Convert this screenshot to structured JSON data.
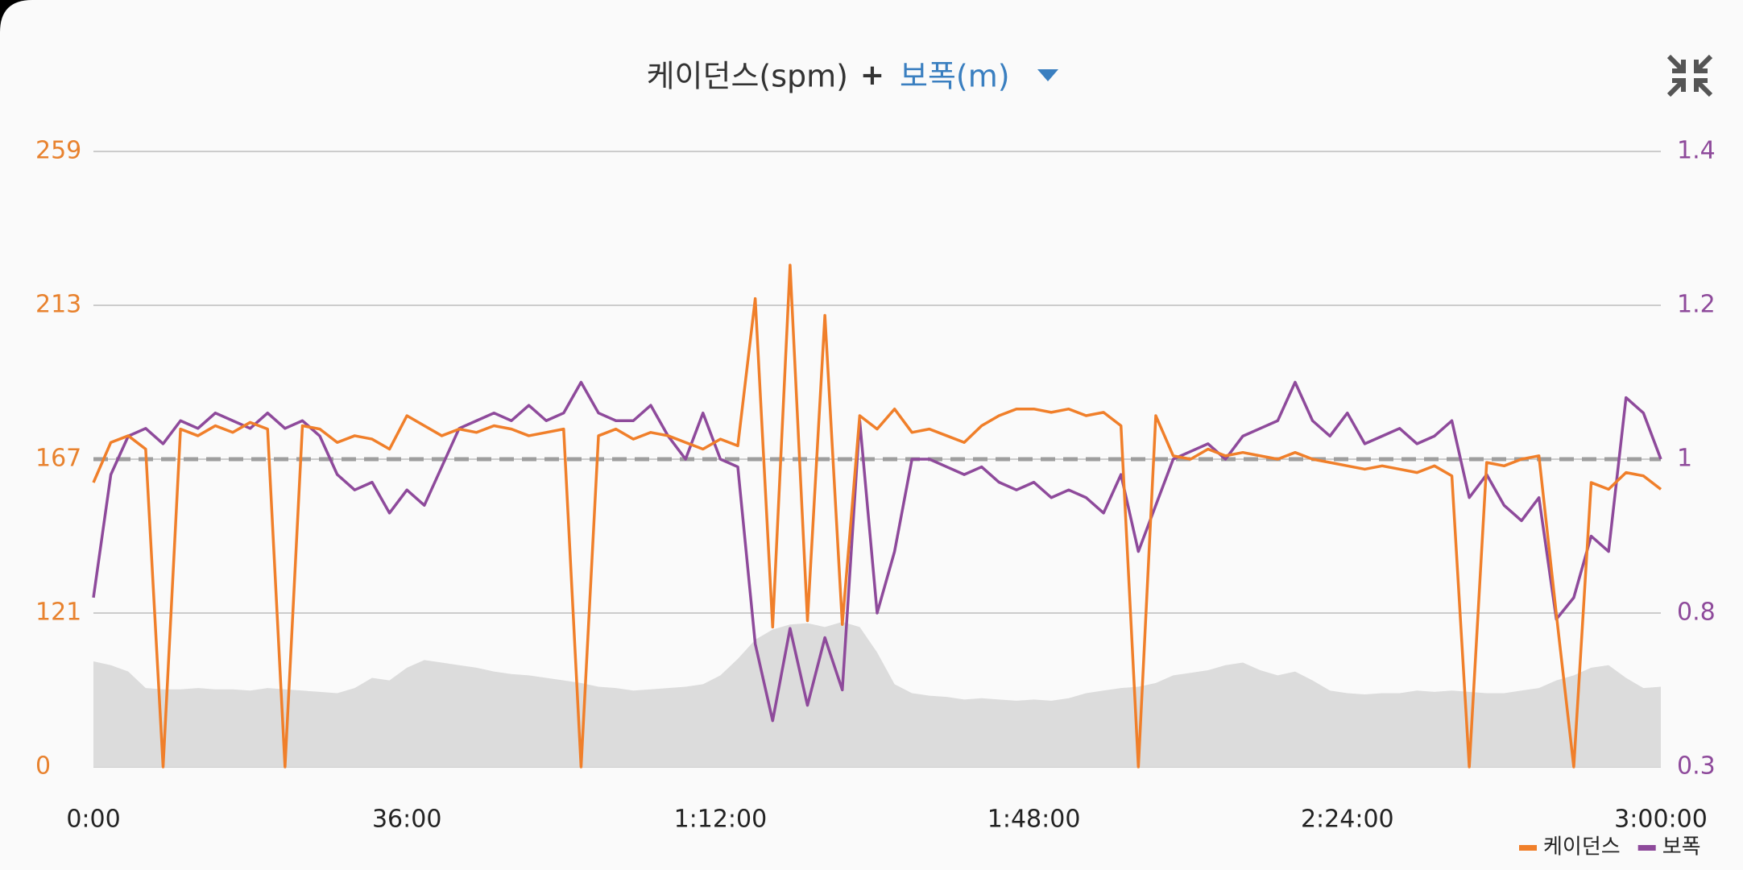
{
  "chart_data": {
    "type": "line",
    "title": {
      "primary": "케이던스(spm)",
      "joiner": "+",
      "secondary": "보폭(m)"
    },
    "xlim": [
      0,
      10800
    ],
    "xticks": [
      {
        "value": 0,
        "label": "0:00"
      },
      {
        "value": 2160,
        "label": "36:00"
      },
      {
        "value": 4320,
        "label": "1:12:00"
      },
      {
        "value": 6480,
        "label": "1:48:00"
      },
      {
        "value": 8640,
        "label": "2:24:00"
      },
      {
        "value": 10800,
        "label": "3:00:00"
      }
    ],
    "ylim": [
      0,
      259
    ],
    "yticks": [
      0,
      121,
      167,
      213,
      259
    ],
    "y2lim": [
      0.3,
      1.4
    ],
    "y2ticks": [
      0.3,
      0.8,
      1,
      1.2,
      1.4
    ],
    "grid": true,
    "reference_line": 167,
    "x": [
      0,
      120,
      240,
      360,
      480,
      600,
      720,
      840,
      960,
      1080,
      1200,
      1320,
      1440,
      1560,
      1680,
      1800,
      1920,
      2040,
      2160,
      2280,
      2400,
      2520,
      2640,
      2760,
      2880,
      3000,
      3120,
      3240,
      3360,
      3480,
      3600,
      3720,
      3840,
      3960,
      4080,
      4200,
      4320,
      4440,
      4560,
      4680,
      4800,
      4920,
      5040,
      5160,
      5280,
      5400,
      5520,
      5640,
      5760,
      5880,
      6000,
      6120,
      6240,
      6360,
      6480,
      6600,
      6720,
      6840,
      6960,
      7080,
      7200,
      7320,
      7440,
      7560,
      7680,
      7800,
      7920,
      8040,
      8160,
      8280,
      8400,
      8520,
      8640,
      8760,
      8880,
      9000,
      9120,
      9240,
      9360,
      9480,
      9600,
      9720,
      9840,
      9960,
      10080,
      10200,
      10320,
      10440,
      10560,
      10680,
      10800
    ],
    "series": [
      {
        "name": "케이던스",
        "color": "#f07f2a",
        "values": [
          160,
          172,
          174,
          170,
          0,
          176,
          174,
          177,
          175,
          178,
          176,
          0,
          177,
          176,
          172,
          174,
          173,
          170,
          180,
          177,
          174,
          176,
          175,
          177,
          176,
          174,
          175,
          176,
          0,
          174,
          176,
          173,
          175,
          174,
          172,
          170,
          173,
          171,
          215,
          110,
          225,
          115,
          210,
          112,
          180,
          176,
          182,
          175,
          176,
          174,
          172,
          177,
          180,
          182,
          182,
          181,
          182,
          180,
          181,
          177,
          0,
          180,
          168,
          167,
          170,
          168,
          169,
          168,
          167,
          169,
          167,
          166,
          165,
          164,
          165,
          164,
          163,
          165,
          162,
          0,
          166,
          165,
          167,
          168,
          120,
          0,
          160,
          158,
          163,
          162,
          158
        ]
      },
      {
        "name": "보폭",
        "color": "#8e4a9b",
        "axis": "y2",
        "values": [
          0.82,
          0.98,
          1.03,
          1.04,
          1.02,
          1.05,
          1.04,
          1.06,
          1.05,
          1.04,
          1.06,
          1.04,
          1.05,
          1.03,
          0.98,
          0.96,
          0.97,
          0.93,
          0.96,
          0.94,
          0.99,
          1.04,
          1.05,
          1.06,
          1.05,
          1.07,
          1.05,
          1.06,
          1.1,
          1.06,
          1.05,
          1.05,
          1.07,
          1.03,
          1.0,
          1.06,
          1.0,
          0.99,
          0.7,
          0.45,
          0.75,
          0.5,
          0.72,
          0.55,
          1.05,
          0.8,
          0.88,
          1.0,
          1.0,
          0.99,
          0.98,
          0.99,
          0.97,
          0.96,
          0.97,
          0.95,
          0.96,
          0.95,
          0.93,
          0.98,
          0.88,
          0.94,
          1.0,
          1.01,
          1.02,
          1.0,
          1.03,
          1.04,
          1.05,
          1.1,
          1.05,
          1.03,
          1.06,
          1.02,
          1.03,
          1.04,
          1.02,
          1.03,
          1.05,
          0.95,
          0.98,
          0.94,
          0.92,
          0.95,
          0.78,
          0.82,
          0.9,
          0.88,
          1.08,
          1.06,
          1.0
        ]
      }
    ],
    "area": {
      "color": "#dcdcdc",
      "values": [
        83,
        80,
        75,
        62,
        61,
        61,
        62,
        61,
        61,
        60,
        62,
        61,
        60,
        59,
        58,
        62,
        70,
        68,
        78,
        84,
        82,
        80,
        78,
        75,
        73,
        72,
        70,
        68,
        66,
        63,
        62,
        60,
        61,
        62,
        63,
        65,
        72,
        85,
        100,
        108,
        112,
        113,
        110,
        114,
        110,
        90,
        65,
        58,
        56,
        55,
        53,
        54,
        53,
        52,
        53,
        52,
        54,
        58,
        60,
        62,
        63,
        66,
        72,
        74,
        76,
        80,
        82,
        76,
        72,
        75,
        68,
        60,
        58,
        57,
        58,
        58,
        60,
        59,
        60,
        59,
        58,
        58,
        60,
        62,
        68,
        72,
        78,
        80,
        70,
        62,
        63
      ]
    }
  }
}
